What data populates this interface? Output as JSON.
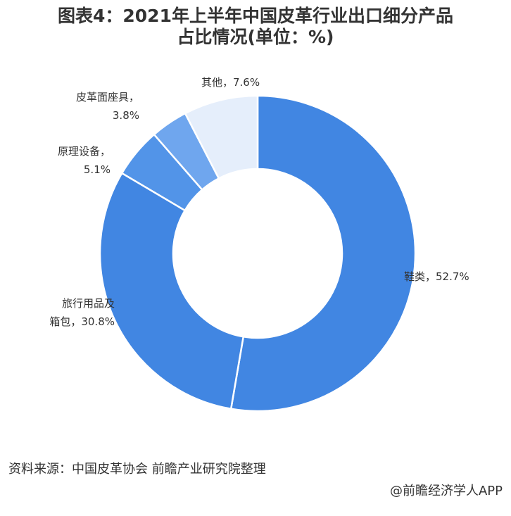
{
  "chart_data": {
    "type": "pie",
    "title_lines": [
      "图表4：2021年上半年中国皮革行业出口细分产品",
      "占比情况(单位：%)"
    ],
    "unit": "%",
    "slices": [
      {
        "name": "鞋类",
        "value": 52.7,
        "label_lines": [
          "鞋类，52.7%"
        ],
        "color": "#4186E2"
      },
      {
        "name": "旅行用品及箱包",
        "value": 30.8,
        "label_lines": [
          "旅行用品及",
          "箱包，30.8%"
        ],
        "color": "#4186E2"
      },
      {
        "name": "原理设备",
        "value": 5.1,
        "label_lines": [
          "原理设备，",
          "5.1%"
        ],
        "color": "#5294E8"
      },
      {
        "name": "皮革面座具",
        "value": 3.8,
        "label_lines": [
          "皮革面座具，",
          "3.8%"
        ],
        "color": "#6FA6EE"
      },
      {
        "name": "其他",
        "value": 7.6,
        "label_lines": [
          "其他，7.6%"
        ],
        "color": "#E5EEFB"
      }
    ]
  },
  "source_text": "资料来源：中国皮革协会 前瞻产业研究院整理",
  "credit_text": "@前瞻经济学人APP"
}
